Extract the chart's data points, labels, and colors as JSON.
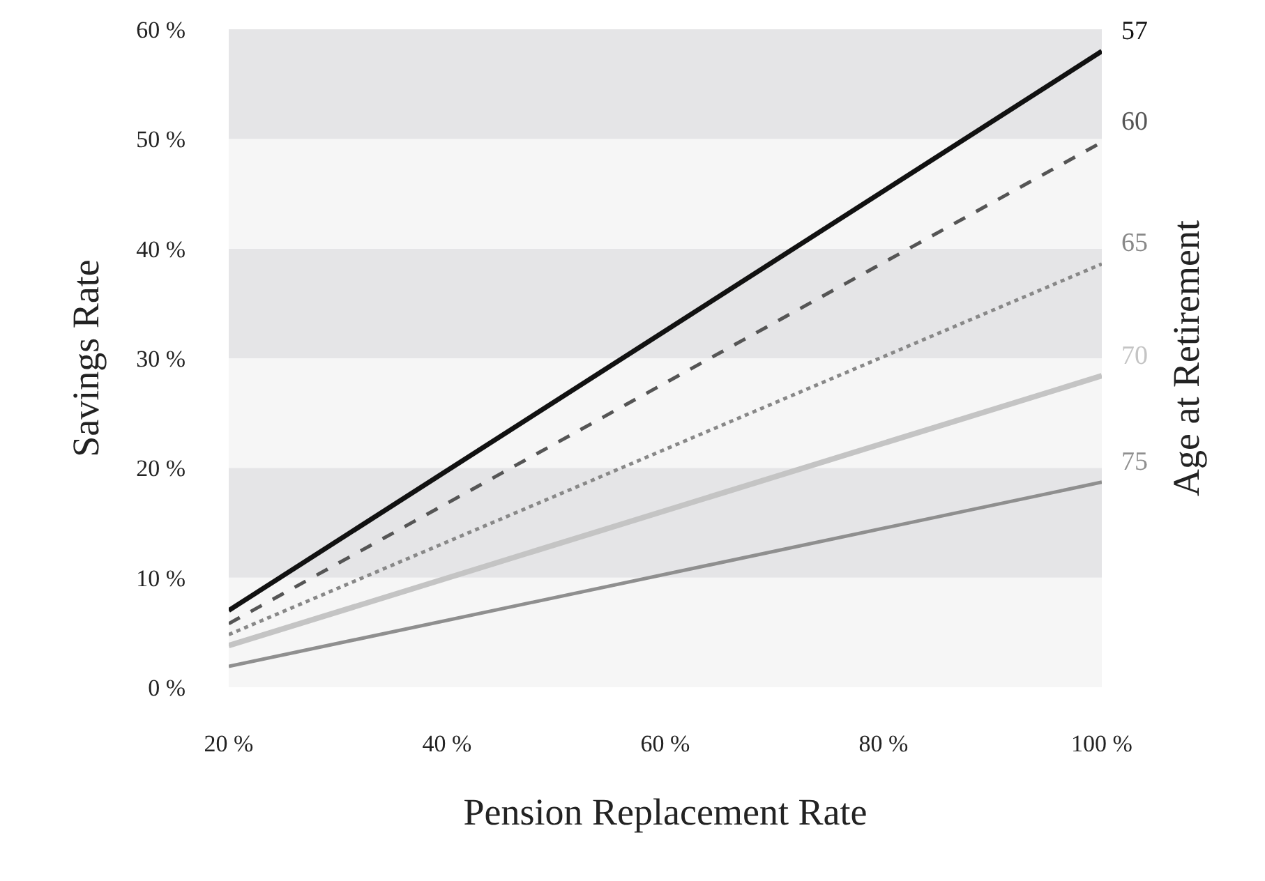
{
  "chart_data": {
    "type": "line",
    "xlabel": "Pension Replacement Rate",
    "ylabel": "Savings Rate",
    "y2label": "Age at Retirement",
    "x": [
      20,
      100
    ],
    "series": [
      {
        "name": "57",
        "color": "#111111",
        "values": [
          7,
          58
        ],
        "line_style": "solid"
      },
      {
        "name": "60",
        "color": "#555555",
        "values": [
          5.8,
          49.7
        ],
        "line_style": "dashed"
      },
      {
        "name": "65",
        "color": "#888888",
        "values": [
          4.8,
          38.6
        ],
        "line_style": "dotted"
      },
      {
        "name": "70",
        "color": "#c4c4c4",
        "values": [
          3.8,
          28.4
        ],
        "line_style": "solid"
      },
      {
        "name": "75",
        "color": "#8f8f8f",
        "values": [
          1.9,
          18.7
        ],
        "line_style": "solid"
      }
    ],
    "xlim": [
      20,
      100
    ],
    "ylim": [
      0,
      60
    ],
    "xticks": [
      {
        "value": 20,
        "label": "20 %"
      },
      {
        "value": 40,
        "label": "40 %"
      },
      {
        "value": 60,
        "label": "60 %"
      },
      {
        "value": 80,
        "label": "80 %"
      },
      {
        "value": 100,
        "label": "100 %"
      }
    ],
    "yticks": [
      {
        "value": 0,
        "label": "0 %"
      },
      {
        "value": 10,
        "label": "10 %"
      },
      {
        "value": 20,
        "label": "20 %"
      },
      {
        "value": 30,
        "label": "30 %"
      },
      {
        "value": 40,
        "label": "40 %"
      },
      {
        "value": 50,
        "label": "50 %"
      },
      {
        "value": 60,
        "label": "60 %"
      }
    ],
    "bands": [
      {
        "axis": "y",
        "from": 0,
        "to": 10,
        "color": "#f6f6f6"
      },
      {
        "axis": "y",
        "from": 10,
        "to": 20,
        "color": "#e5e5e7"
      },
      {
        "axis": "y",
        "from": 20,
        "to": 30,
        "color": "#f6f6f6"
      },
      {
        "axis": "y",
        "from": 30,
        "to": 40,
        "color": "#e5e5e7"
      },
      {
        "axis": "y",
        "from": 40,
        "to": 50,
        "color": "#f6f6f6"
      },
      {
        "axis": "y",
        "from": 50,
        "to": 60,
        "color": "#e5e5e7"
      }
    ],
    "grid": false,
    "legend": false,
    "marker": "none"
  }
}
